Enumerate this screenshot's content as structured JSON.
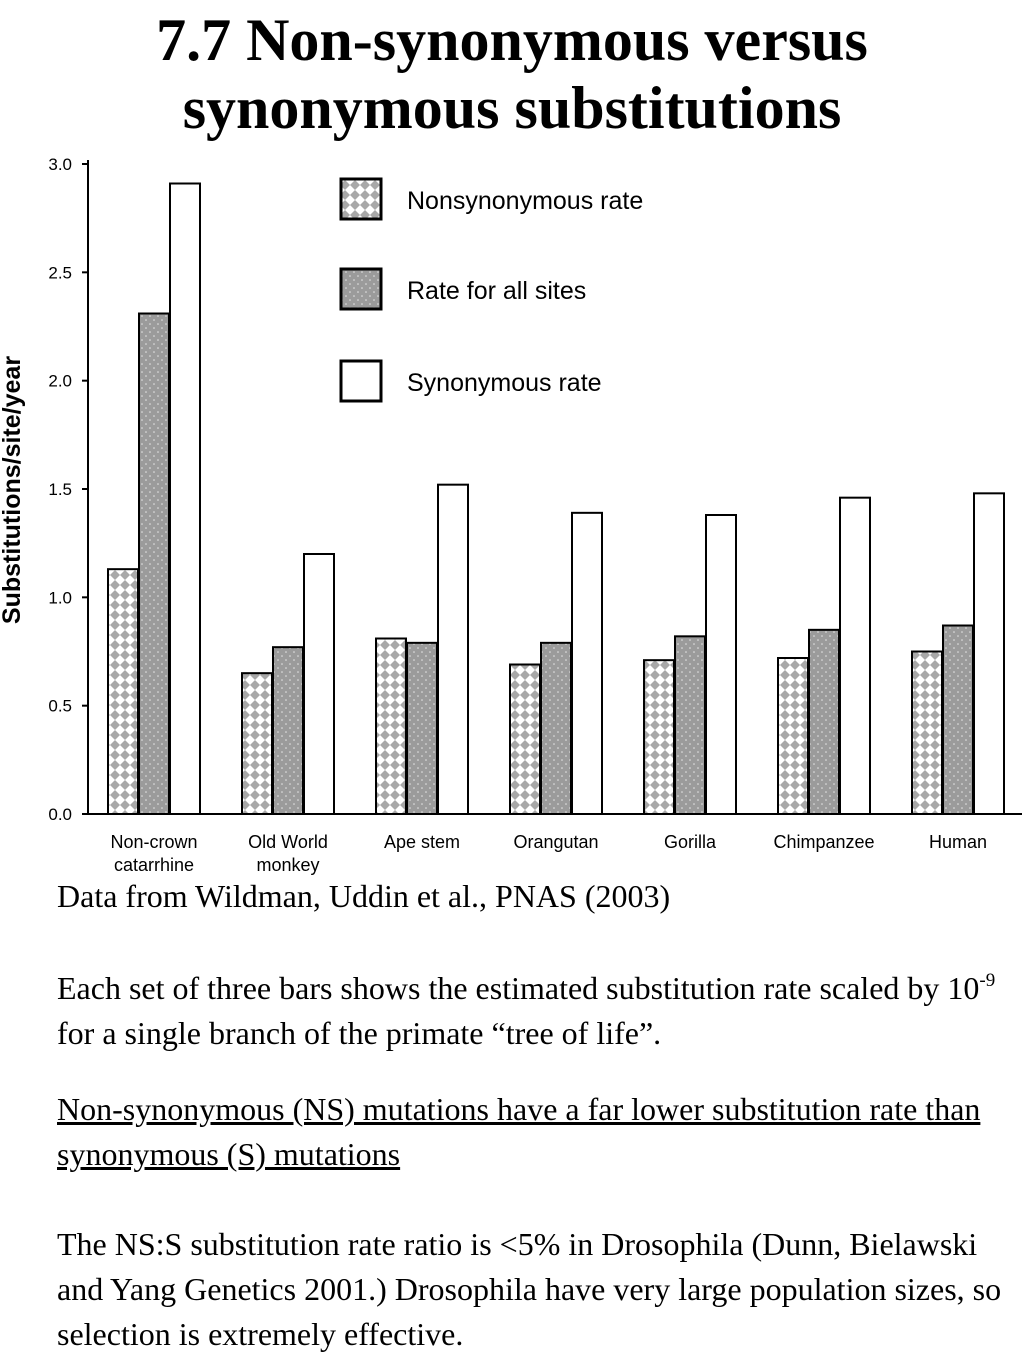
{
  "title": "7.7 Non-synonymous versus synonymous substitutions",
  "chart_data": {
    "type": "bar",
    "ylabel": "Substitutions/site/year",
    "xlabel": "",
    "ylim": [
      0,
      3.0
    ],
    "yticks": [
      "0.0",
      "0.5",
      "1.0",
      "1.5",
      "2.0",
      "2.5",
      "3.0"
    ],
    "categories": [
      "Non-crown catarrhine",
      "Old World monkey",
      "Ape stem",
      "Orangutan",
      "Gorilla",
      "Chimpanzee",
      "Human"
    ],
    "category_labels": [
      [
        "Non-crown",
        "catarrhine"
      ],
      [
        "Old World",
        "monkey"
      ],
      [
        "Ape stem"
      ],
      [
        "Orangutan"
      ],
      [
        "Gorilla"
      ],
      [
        "Chimpanzee"
      ],
      [
        "Human"
      ]
    ],
    "series": [
      {
        "name": "Nonsynonymous rate",
        "pattern": "checker",
        "values": [
          1.13,
          0.65,
          0.81,
          0.69,
          0.71,
          0.72,
          0.75
        ]
      },
      {
        "name": "Rate for all sites",
        "pattern": "dotted-gray",
        "values": [
          2.31,
          0.77,
          0.79,
          0.79,
          0.82,
          0.85,
          0.87
        ]
      },
      {
        "name": "Synonymous rate",
        "pattern": "white",
        "values": [
          2.91,
          1.2,
          1.52,
          1.39,
          1.38,
          1.46,
          1.48
        ]
      }
    ],
    "legend_position": "top-center",
    "grid": false,
    "colors": {
      "bar_gray": "#9b9b9b",
      "checker_gray": "#a8a8a8",
      "outline": "#000000"
    }
  },
  "source": "Data from Wildman, Uddin et al., PNAS (2003)",
  "description": {
    "part1": "Each set of three bars shows the estimated substitution rate scaled by 10",
    "exponent": "-9",
    "part2": " for a single branch of the primate “tree of life”."
  },
  "claim": "Non-synonymous (NS) mutations have a far lower substitution rate than synonymous (S) mutations",
  "note": "The NS:S  substitution rate ratio is <5% in Drosophila (Dunn, Bielawski and Yang Genetics 2001.) Drosophila have very large population sizes, so selection is extremely effective."
}
